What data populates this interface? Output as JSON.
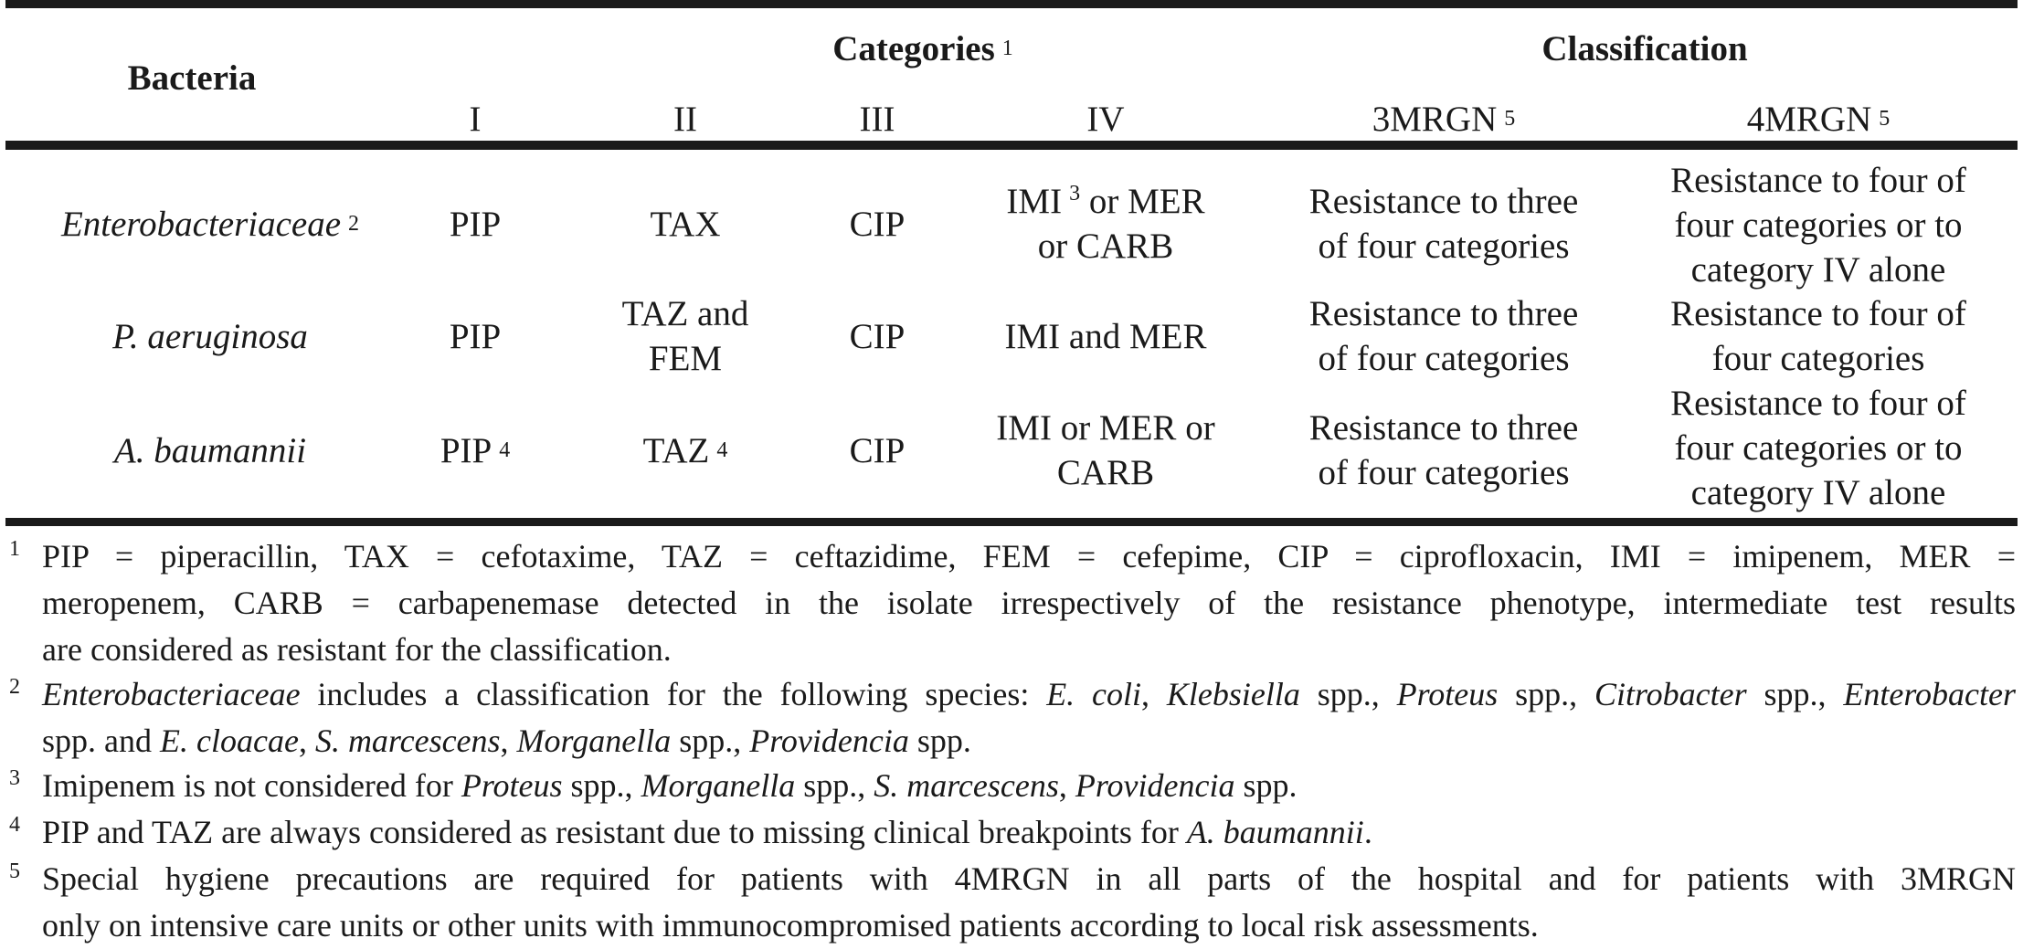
{
  "header": {
    "bacteria": "Bacteria",
    "categories": "Categories",
    "categories_sup": "1",
    "classification": "Classification",
    "cols": [
      "I",
      "II",
      "III",
      "IV"
    ],
    "class_cols": [
      "3MRGN",
      "4MRGN"
    ],
    "class_sup": "5"
  },
  "rows": [
    {
      "bacteria": "Enterobacteriaceae",
      "bacteria_sup": "2",
      "I": "PIP",
      "I_sup": "",
      "II_lines": [
        "TAX"
      ],
      "II_sup": "",
      "III": "CIP",
      "IV_l1": "IMI",
      "IV_sup": "3",
      "IV_l1b": "or MER",
      "IV_l2": "or CARB",
      "mrgn3": [
        "Resistance to three",
        "of four categories"
      ],
      "mrgn4": [
        "Resistance to four of",
        "four categories or to",
        "category IV alone"
      ]
    },
    {
      "bacteria": "P. aeruginosa",
      "bacteria_sup": "",
      "I": "PIP",
      "I_sup": "",
      "II_lines": [
        "TAZ and",
        "FEM"
      ],
      "II_sup": "",
      "III": "CIP",
      "IV_lines": [
        "IMI and MER"
      ],
      "mrgn3": [
        "Resistance to three",
        "of four categories"
      ],
      "mrgn4": [
        "Resistance to four of",
        "four categories"
      ]
    },
    {
      "bacteria": "A. baumannii",
      "bacteria_sup": "",
      "I": "PIP",
      "I_sup": "4",
      "II_lines": [
        "TAZ"
      ],
      "II_sup": "4",
      "III": "CIP",
      "IV_lines": [
        "IMI or MER or",
        "CARB"
      ],
      "mrgn3": [
        "Resistance to three",
        "of four categories"
      ],
      "mrgn4": [
        "Resistance to four of",
        "four categories or to",
        "category IV alone"
      ]
    }
  ],
  "footnotes": {
    "f1_num": "1",
    "f1": [
      "PIP = piperacillin, TAX = cefotaxime, TAZ = ceftazidime, FEM = cefepime, CIP = ciprofloxacin, IMI = imipenem, MER =",
      "meropenem, CARB = carbapenemase detected in the isolate irrespectively of the resistance phenotype, intermediate test results",
      "are considered as resistant for the classification."
    ],
    "f2_num": "2",
    "f2": {
      "a": "Enterobacteriaceae",
      "b": " includes a classification for the following species: ",
      "c": "E. coli",
      "d": ", ",
      "e": "Klebsiella",
      "f": " spp., ",
      "g": "Proteus",
      "h": " spp., ",
      "i": "Citrobacter",
      "j": " spp., ",
      "k": "Enterobacter",
      "l": "spp. and ",
      "m": "E. cloacae",
      "n": ", ",
      "o": "S. marcescens",
      "p": ", ",
      "q": "Morganella",
      "r": " spp., ",
      "s": "Providencia",
      "t": " spp."
    },
    "f3_num": "3",
    "f3": {
      "a": "Imipenem is not considered for ",
      "b": "Proteus",
      "c": " spp., ",
      "d": "Morganella",
      "e": " spp., ",
      "f": "S. marcescens",
      "g": ", ",
      "h": "Providencia",
      "i": " spp."
    },
    "f4_num": "4",
    "f4": {
      "a": "PIP and TAZ are always considered as resistant due to missing clinical breakpoints for ",
      "b": "A. baumannii",
      "c": "."
    },
    "f5_num": "5",
    "f5": [
      "Special hygiene precautions are required for patients with 4MRGN in all parts of the hospital and for patients with 3MRGN",
      "only on intensive care units or other units with immunocompromised patients according to local risk assessments."
    ]
  }
}
